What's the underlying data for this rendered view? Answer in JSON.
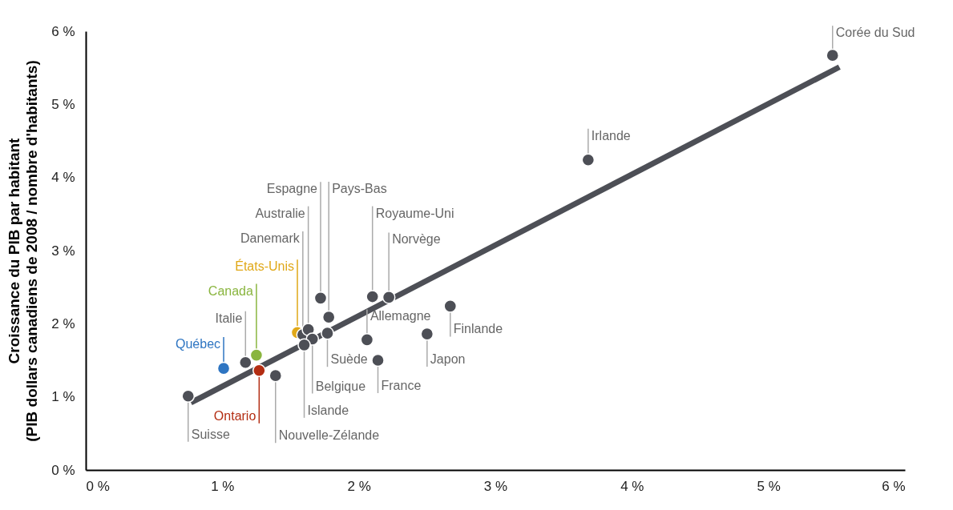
{
  "chart_data": {
    "type": "scatter",
    "ylabel": "Croissance du PIB par habitant\n(PIB dollars canadiens de 2008 / nombre d'habitants)",
    "xlim": [
      0,
      6
    ],
    "ylim": [
      0,
      6
    ],
    "xticks": [
      {
        "value": 0,
        "label": "0 %"
      },
      {
        "value": 1,
        "label": "1 %"
      },
      {
        "value": 2,
        "label": "2 %"
      },
      {
        "value": 3,
        "label": "3 %"
      },
      {
        "value": 4,
        "label": "4 %"
      },
      {
        "value": 5,
        "label": "5 %"
      },
      {
        "value": 6,
        "label": "6 %"
      }
    ],
    "yticks": [
      {
        "value": 0,
        "label": "0 %"
      },
      {
        "value": 1,
        "label": "1 %"
      },
      {
        "value": 2,
        "label": "2 %"
      },
      {
        "value": 3,
        "label": "3 %"
      },
      {
        "value": 4,
        "label": "4 %"
      },
      {
        "value": 5,
        "label": "5 %"
      },
      {
        "value": 6,
        "label": "6 %"
      }
    ],
    "grid": false,
    "legend": false,
    "marker": "circle",
    "series": [
      {
        "x": [
          0.75,
          1.01,
          1.17,
          1.25,
          1.27,
          1.39,
          1.55,
          1.59,
          1.63,
          1.72,
          1.78,
          1.77,
          2.06,
          1.66,
          1.6,
          2.14,
          2.1,
          2.22,
          2.5,
          2.67,
          3.68,
          5.47
        ],
        "values": [
          1.01,
          1.39,
          1.47,
          1.57,
          1.36,
          1.29,
          1.88,
          1.85,
          1.92,
          2.35,
          2.09,
          1.87,
          1.78,
          1.79,
          1.71,
          1.5,
          2.37,
          2.36,
          1.86,
          2.24,
          4.24,
          5.67
        ],
        "colors": [
          "#4d4f56",
          "#2e75c2",
          "#4d4f56",
          "#8ab53f",
          "#b32d12",
          "#4d4f56",
          "#e0a818",
          "#4d4f56",
          "#4d4f56",
          "#4d4f56",
          "#4d4f56",
          "#4d4f56",
          "#4d4f56",
          "#4d4f56",
          "#4d4f56",
          "#4d4f56",
          "#4d4f56",
          "#4d4f56",
          "#4d4f56",
          "#4d4f56",
          "#4d4f56",
          "#4d4f56"
        ]
      },
      {
        "type": "line",
        "color": "#4d4f56",
        "line_style": "solid",
        "marker": "none",
        "x": [
          0.77,
          5.52
        ],
        "values": [
          0.92,
          5.51
        ]
      }
    ],
    "annotations": [
      {
        "text": "Suisse",
        "x": 0.75,
        "y": 1.01
      },
      {
        "text": "Québec",
        "x": 1.01,
        "y": 1.39
      },
      {
        "text": "Italie",
        "x": 1.17,
        "y": 1.47
      },
      {
        "text": "Canada",
        "x": 1.25,
        "y": 1.57
      },
      {
        "text": "Ontario",
        "x": 1.27,
        "y": 1.36
      },
      {
        "text": "Nouvelle-Zélande",
        "x": 1.39,
        "y": 1.29
      },
      {
        "text": "États-Unis",
        "x": 1.55,
        "y": 1.88
      },
      {
        "text": "Danemark",
        "x": 1.59,
        "y": 1.85
      },
      {
        "text": "Australie",
        "x": 1.63,
        "y": 1.92
      },
      {
        "text": "Espagne",
        "x": 1.72,
        "y": 2.35
      },
      {
        "text": "Pays-Bas",
        "x": 1.78,
        "y": 2.09
      },
      {
        "text": "Suède",
        "x": 1.77,
        "y": 1.87
      },
      {
        "text": "Allemagne",
        "x": 2.06,
        "y": 1.78
      },
      {
        "text": "Belgique",
        "x": 1.66,
        "y": 1.79
      },
      {
        "text": "Islande",
        "x": 1.6,
        "y": 1.71
      },
      {
        "text": "France",
        "x": 2.14,
        "y": 1.5
      },
      {
        "text": "Royaume-Uni",
        "x": 2.1,
        "y": 2.37
      },
      {
        "text": "Norvège",
        "x": 2.22,
        "y": 2.36
      },
      {
        "text": "Japon",
        "x": 2.5,
        "y": 1.86
      },
      {
        "text": "Finlande",
        "x": 2.67,
        "y": 2.24
      },
      {
        "text": "Irlande",
        "x": 3.68,
        "y": 4.24
      },
      {
        "text": "Corée du Sud",
        "x": 5.47,
        "y": 5.67
      }
    ]
  }
}
